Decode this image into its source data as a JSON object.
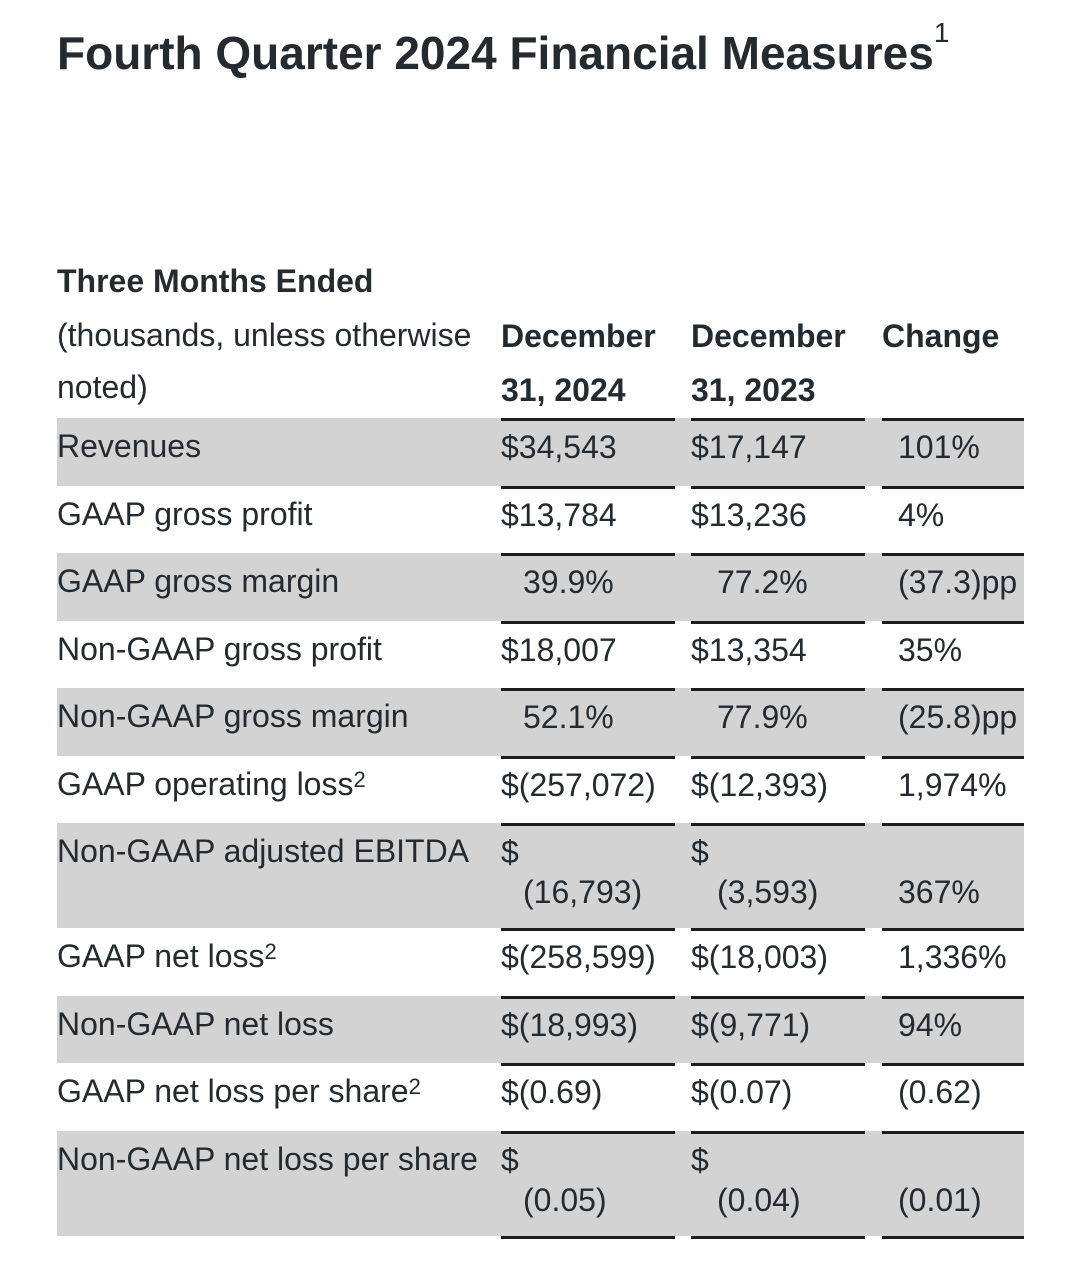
{
  "title": "Fourth Quarter 2024 Financial Measures",
  "title_footnote": "1",
  "period_label": "Three Months Ended",
  "units_note": "(thousands, unless otherwise noted)",
  "columns": [
    {
      "line1": "December",
      "line2": "31, 2024"
    },
    {
      "line1": "December",
      "line2": "31, 2023"
    },
    {
      "line1": "Change",
      "line2": ""
    }
  ],
  "rows": [
    {
      "label": "Revenues",
      "footnote": "",
      "cy": "$34,543",
      "py": "$17,147",
      "change": "101%"
    },
    {
      "label": "GAAP gross profit",
      "footnote": "",
      "cy": "$13,784",
      "py": "$13,236",
      "change": "4%"
    },
    {
      "label": "GAAP gross margin",
      "footnote": "",
      "cy": "39.9%",
      "py": "77.2%",
      "change": "(37.3)pp"
    },
    {
      "label": "Non-GAAP gross profit",
      "footnote": "",
      "cy": "$18,007",
      "py": "$13,354",
      "change": "35%"
    },
    {
      "label": "Non-GAAP gross margin",
      "footnote": "",
      "cy": "52.1%",
      "py": "77.9%",
      "change": "(25.8)pp"
    },
    {
      "label": "GAAP operating loss",
      "footnote": "2",
      "cy": "$(257,072)",
      "py": "$(12,393)",
      "change": "1,974%"
    },
    {
      "label": "Non-GAAP adjusted EBITDA",
      "footnote": "",
      "cy_sym": "$",
      "cy": "(16,793)",
      "py_sym": "$",
      "py": "(3,593)",
      "change": "367%"
    },
    {
      "label": "GAAP net loss",
      "footnote": "2",
      "cy": "$(258,599)",
      "py": "$(18,003)",
      "change": "1,336%"
    },
    {
      "label": "Non-GAAP net loss",
      "footnote": "",
      "cy": "$(18,993)",
      "py": "$(9,771)",
      "change": "94%"
    },
    {
      "label": "GAAP net loss per share",
      "footnote": "2",
      "cy": "$(0.69)",
      "py": "$(0.07)",
      "change": "(0.62)"
    },
    {
      "label": "Non-GAAP net loss per share",
      "footnote": "",
      "cy_sym": "$",
      "cy": "(0.05)",
      "py_sym": "$",
      "py": "(0.04)",
      "change": "(0.01)"
    }
  ]
}
